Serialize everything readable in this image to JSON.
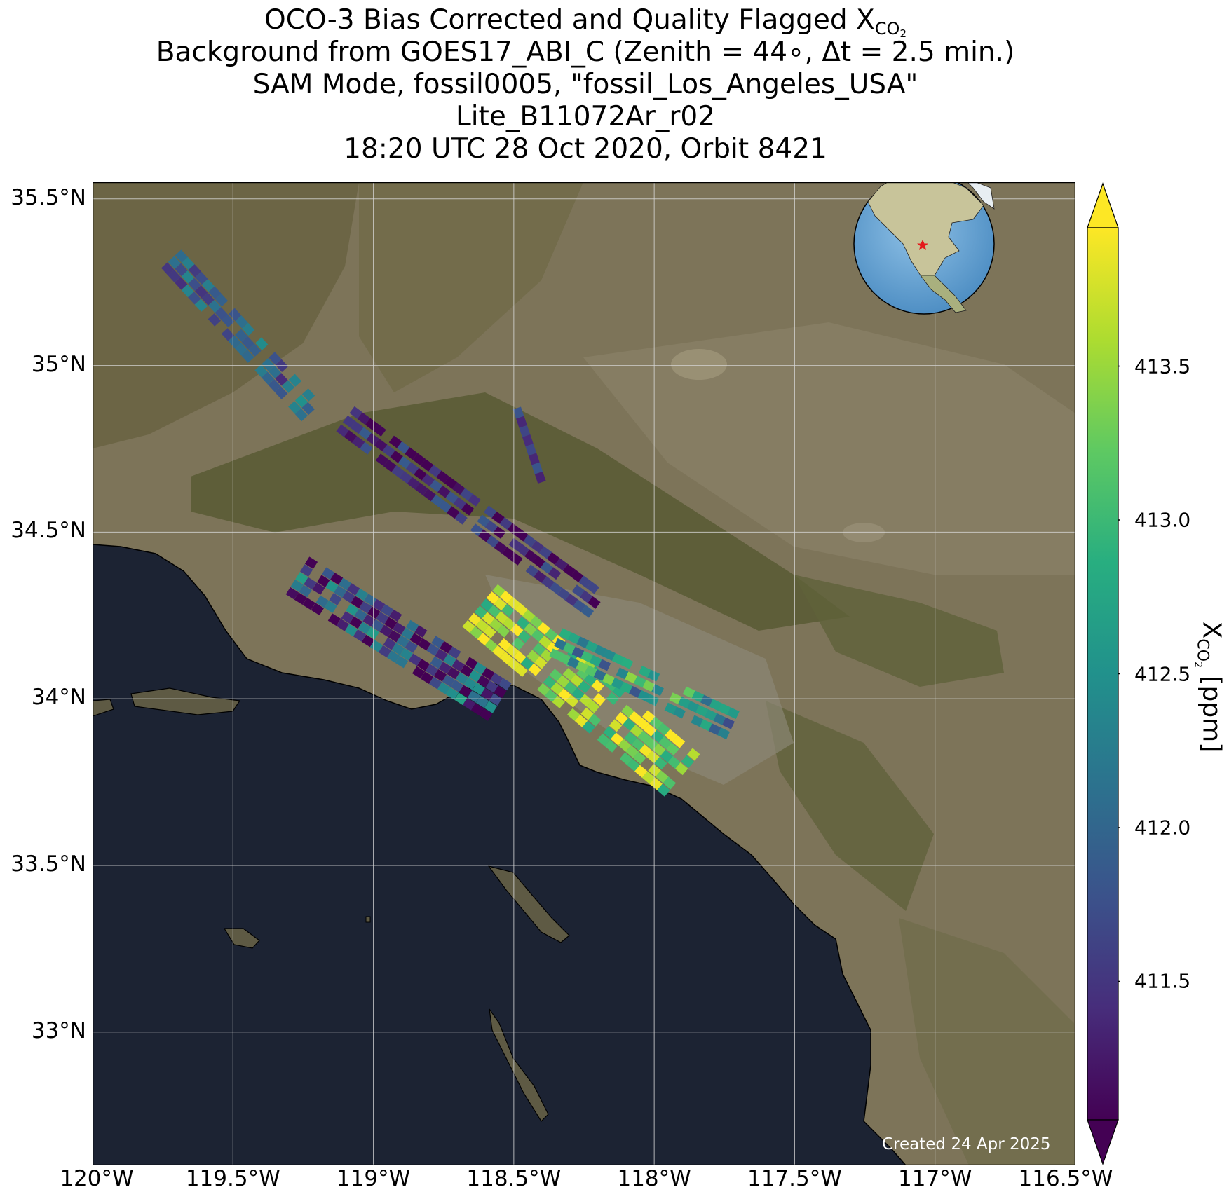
{
  "title": {
    "line1_prefix": "OCO-3 Bias Corrected and Quality Flagged X",
    "line1_sub": "CO",
    "line1_subsub": "2",
    "line2": "Background from GOES17_ABI_C (Zenith = 44∘, Δt =  2.5 min.)",
    "line3": "SAM Mode, fossil0005, \"fossil_Los_Angeles_USA\"",
    "line4": "Lite_B11072Ar_r02",
    "line5": "18:20 UTC 28 Oct 2020, Orbit 8421"
  },
  "map": {
    "lon_range": [
      -120.0,
      -116.5
    ],
    "lat_range": [
      32.6,
      35.55
    ],
    "lon_ticks": [
      -120.0,
      -119.5,
      -119.0,
      -118.5,
      -118.0,
      -117.5,
      -117.0,
      -116.5
    ],
    "lon_tick_labels": [
      "120°W",
      "119.5°W",
      "119°W",
      "118.5°W",
      "118°W",
      "117.5°W",
      "117°W",
      "116.5°W"
    ],
    "lat_ticks": [
      35.5,
      35.0,
      34.5,
      34.0,
      33.5,
      33.0
    ],
    "lat_tick_labels": [
      "35.5°N",
      "35°N",
      "34.5°N",
      "34°N",
      "33.5°N",
      "33°N"
    ],
    "grid": true,
    "colors": {
      "land": "#7d7459",
      "mountain": "#5c5a36",
      "ocean": "#1c2333",
      "urban": "#8e8978",
      "grid": "#d8d8d8",
      "coast": "#000000"
    },
    "inset": {
      "description_icon": "globe-icon",
      "marker_color": "#e41a1c",
      "ocean_color": "#6fa8d6",
      "land_color": "#c8c49a"
    },
    "credit": "Created 24 Apr 2025"
  },
  "colorbar": {
    "cmap": "viridis",
    "range": [
      411.05,
      413.95
    ],
    "ticks": [
      411.5,
      412.0,
      412.5,
      413.0,
      413.5
    ],
    "tick_labels": [
      "411.5",
      "412.0",
      "412.5",
      "413.0",
      "413.5"
    ],
    "extend": "both",
    "label_prefix": "X",
    "label_sub": "CO",
    "label_subsub": "2",
    "label_suffix": " [ppm]"
  },
  "chart_data": {
    "type": "heatmap",
    "variable": "XCO2",
    "units": "ppm",
    "swaths": [
      {
        "start": [
          -119.72,
          35.32
        ],
        "end": [
          -119.22,
          34.86
        ],
        "width_deg": 0.1,
        "mean": 411.9,
        "spread": 0.6
      },
      {
        "start": [
          -119.1,
          34.84
        ],
        "end": [
          -118.2,
          34.28
        ],
        "width_deg": 0.12,
        "mean": 411.3,
        "spread": 0.6
      },
      {
        "start": [
          -119.27,
          34.37
        ],
        "end": [
          -118.55,
          33.99
        ],
        "width_deg": 0.16,
        "mean": 411.7,
        "spread": 1.0
      },
      {
        "start": [
          -118.62,
          34.28
        ],
        "end": [
          -117.9,
          33.77
        ],
        "width_deg": 0.2,
        "mean": 413.5,
        "spread": 0.7
      },
      {
        "start": [
          -118.35,
          34.17
        ],
        "end": [
          -117.72,
          33.92
        ],
        "width_deg": 0.12,
        "mean": 412.6,
        "spread": 0.9
      },
      {
        "start": [
          -118.5,
          34.9
        ],
        "end": [
          -118.4,
          34.65
        ],
        "width_deg": 0.02,
        "mean": 411.6,
        "spread": 0.3
      }
    ]
  }
}
